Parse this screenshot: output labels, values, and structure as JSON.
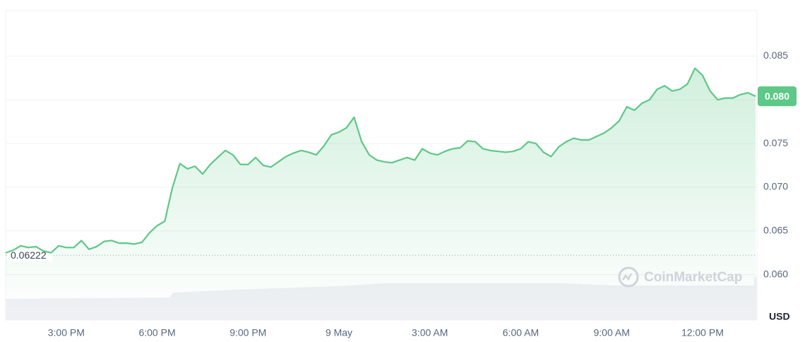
{
  "chart_data": {
    "type": "line",
    "categories": [
      null,
      null,
      null,
      null,
      null,
      null,
      null,
      null,
      "3:00 PM",
      null,
      null,
      null,
      null,
      null,
      null,
      null,
      null,
      null,
      null,
      null,
      "6:00 PM",
      null,
      null,
      null,
      null,
      null,
      null,
      null,
      null,
      null,
      null,
      null,
      "9:00 PM",
      null,
      null,
      null,
      null,
      null,
      null,
      null,
      null,
      null,
      null,
      null,
      "9 May",
      null,
      null,
      null,
      null,
      null,
      null,
      null,
      null,
      null,
      null,
      null,
      "3:00 AM",
      null,
      null,
      null,
      null,
      null,
      null,
      null,
      null,
      null,
      null,
      null,
      "6:00 AM",
      null,
      null,
      null,
      null,
      null,
      null,
      null,
      null,
      null,
      null,
      null,
      "9:00 AM",
      null,
      null,
      null,
      null,
      null,
      null,
      null,
      null,
      null,
      null,
      null,
      "12:00 PM",
      null,
      null,
      null,
      null,
      null,
      null,
      null
    ],
    "values": [
      0.0625,
      0.0628,
      0.0633,
      0.0631,
      0.0632,
      0.0627,
      0.0625,
      0.0633,
      0.0631,
      0.0631,
      0.0639,
      0.0629,
      0.0632,
      0.0638,
      0.0639,
      0.0636,
      0.0636,
      0.0635,
      0.0637,
      0.0648,
      0.0656,
      0.0661,
      0.0699,
      0.0727,
      0.0721,
      0.0724,
      0.0715,
      0.0726,
      0.0734,
      0.0742,
      0.0737,
      0.0726,
      0.0726,
      0.0734,
      0.0725,
      0.0723,
      0.0729,
      0.0735,
      0.0739,
      0.0742,
      0.074,
      0.0737,
      0.0747,
      0.076,
      0.0763,
      0.0768,
      0.078,
      0.0752,
      0.0737,
      0.0731,
      0.0729,
      0.0728,
      0.0731,
      0.0734,
      0.0731,
      0.0744,
      0.0739,
      0.0737,
      0.0741,
      0.0744,
      0.0745,
      0.0753,
      0.0752,
      0.0744,
      0.0742,
      0.0741,
      0.074,
      0.0741,
      0.0744,
      0.0752,
      0.075,
      0.074,
      0.0735,
      0.0746,
      0.0752,
      0.0756,
      0.0754,
      0.0754,
      0.0758,
      0.0762,
      0.0768,
      0.0776,
      0.0792,
      0.0788,
      0.0796,
      0.08,
      0.0812,
      0.0816,
      0.081,
      0.0812,
      0.0818,
      0.0836,
      0.0828,
      0.081,
      0.08,
      0.0802,
      0.0802,
      0.0806,
      0.0808,
      0.0804
    ],
    "color": "#5dc887",
    "ylim": [
      0.0548,
      0.0902
    ],
    "yticks": [
      {
        "value": 0.06,
        "label": "0.060"
      },
      0.065,
      {
        "value": 0.07,
        "label": "0.070"
      },
      0.075,
      {
        "value": 0.08,
        "label": "0.080"
      },
      0.085
    ],
    "grid": true,
    "reference_value": 0.06222,
    "current_label": "0.080",
    "y_unit": "USD",
    "watermark": "CoinMarketCap"
  }
}
